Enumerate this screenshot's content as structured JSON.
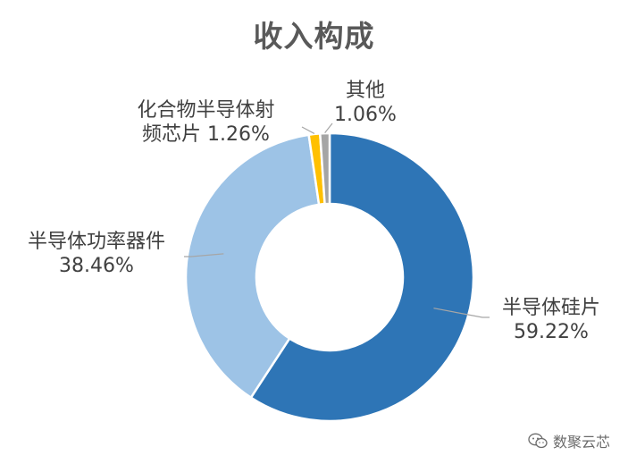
{
  "chart_data": {
    "type": "pie",
    "style": "donut",
    "title": "收入构成",
    "categories": [
      "半导体硅片",
      "半导体功率器件",
      "化合物半导体射频芯片",
      "其他"
    ],
    "values": [
      59.22,
      38.46,
      1.26,
      1.06
    ],
    "value_labels": [
      "59.22%",
      "38.46%",
      "1.26%",
      "1.06%"
    ],
    "colors": [
      "#2E75B6",
      "#9DC3E6",
      "#FFC000",
      "#A5A5A5"
    ],
    "labels": {
      "silicon": [
        "半导体硅片",
        "59.22%"
      ],
      "power": [
        "半导体功率器件",
        "38.46%"
      ],
      "compound": [
        "化合物半导体射",
        "频芯片 1.26%"
      ],
      "other": [
        "其他",
        "1.06%"
      ]
    }
  },
  "watermark": {
    "text": "数聚云芯",
    "icon": "wechat-icon"
  }
}
